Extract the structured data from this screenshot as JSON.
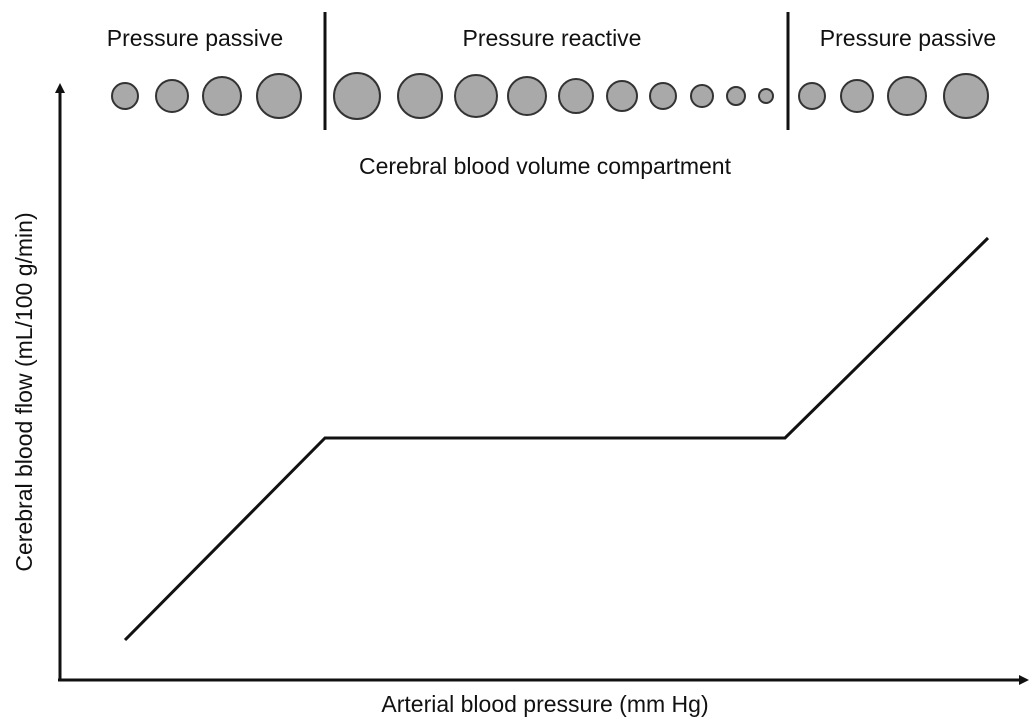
{
  "sections": [
    {
      "label": "Pressure passive"
    },
    {
      "label": "Pressure reactive"
    },
    {
      "label": "Pressure passive"
    }
  ],
  "compartment_label": "Cerebral blood volume compartment",
  "x_axis_label": "Arterial blood pressure (mm Hg)",
  "y_axis_label": "Cerebral blood flow (mL/100 g/min)"
}
